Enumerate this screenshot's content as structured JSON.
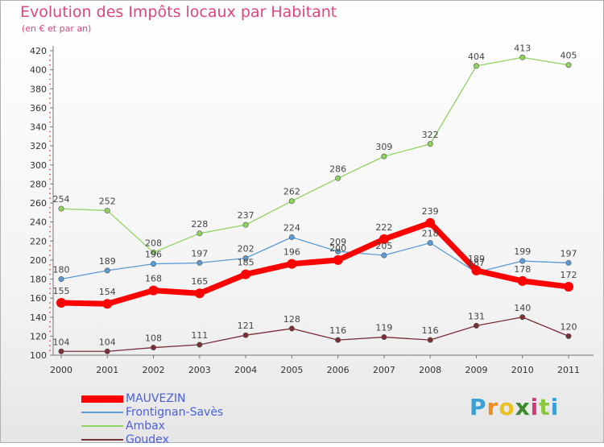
{
  "header": {
    "title": "Evolution des Impôts locaux par Habitant",
    "subtitle": "(en € et par an)"
  },
  "brand": {
    "letters": [
      {
        "ch": "P",
        "color": "#3aa0d8"
      },
      {
        "ch": "r",
        "color": "#f08c1e"
      },
      {
        "ch": "o",
        "color": "#e8c21e"
      },
      {
        "ch": "x",
        "color": "#3c8a2e"
      },
      {
        "ch": "i",
        "color": "#d13b7a"
      },
      {
        "ch": "t",
        "color": "#8cc63f"
      },
      {
        "ch": "i",
        "color": "#3aa0d8"
      }
    ]
  },
  "chart_data": {
    "type": "line",
    "title": "Evolution des Impôts locaux par Habitant",
    "subtitle": "(en € et par an)",
    "x": [
      "2000",
      "2001",
      "2002",
      "2003",
      "2004",
      "2005",
      "2006",
      "2007",
      "2008",
      "2009",
      "2010",
      "2011"
    ],
    "yticks": [
      100,
      120,
      140,
      160,
      180,
      200,
      220,
      240,
      260,
      280,
      300,
      320,
      340,
      360,
      380,
      400,
      420
    ],
    "ylim": [
      100,
      420
    ],
    "legend_position": "bottom-left",
    "grid": false,
    "series": [
      {
        "name": "MAUVEZIN",
        "color": "#ff0000",
        "values": [
          155,
          154,
          168,
          165,
          185,
          196,
          200,
          222,
          239,
          189,
          178,
          172
        ]
      },
      {
        "name": "Frontignan-Savès",
        "color": "#5b9bd5",
        "values": [
          180,
          189,
          196,
          197,
          202,
          224,
          209,
          205,
          218,
          187,
          199,
          197
        ]
      },
      {
        "name": "Ambax",
        "color": "#8fd35f",
        "values": [
          254,
          252,
          208,
          228,
          237,
          262,
          286,
          309,
          322,
          404,
          413,
          405
        ]
      },
      {
        "name": "Goudex",
        "color": "#7a2e36",
        "values": [
          104,
          104,
          108,
          111,
          121,
          128,
          116,
          119,
          116,
          131,
          140,
          120
        ]
      }
    ],
    "data_labels": [
      {
        "series": "MAUVEZIN",
        "labels": [
          "155",
          "154",
          "168",
          "165",
          "185",
          "196",
          "200",
          "222",
          "239",
          "189",
          "178",
          "172"
        ]
      },
      {
        "series": "Frontignan-Savès",
        "labels": [
          "180",
          "189",
          "196",
          "197",
          "202",
          "224",
          "209",
          "205",
          "218",
          "187",
          "199",
          "197"
        ]
      },
      {
        "series": "Ambax",
        "labels": [
          "254",
          "252",
          "208",
          "228",
          "237",
          "262",
          "286",
          "309",
          "322",
          "404",
          "413",
          "405"
        ]
      },
      {
        "series": "Goudex",
        "labels": [
          "104",
          "104",
          "108",
          "111",
          "121",
          "128",
          "116",
          "119",
          "116",
          "131",
          "140",
          "120"
        ]
      }
    ]
  }
}
